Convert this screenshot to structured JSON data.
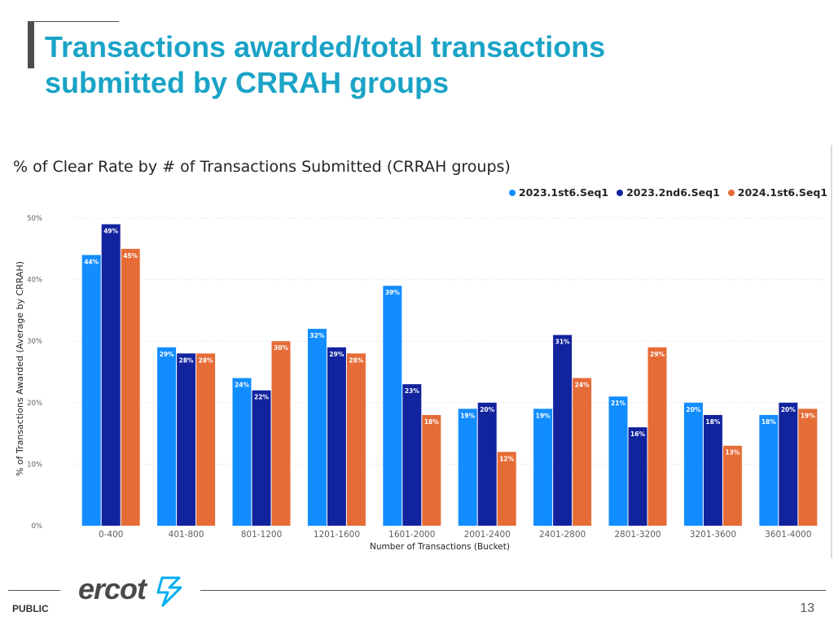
{
  "slide": {
    "title_line1": "Transactions awarded/total transactions",
    "title_line2": "submitted by CRRAH groups",
    "footer_label": "PUBLIC",
    "page_number": "13",
    "logo_text": "ercot"
  },
  "colors": {
    "title": "#1aa3c6",
    "series": [
      "#118dff",
      "#12239e",
      "#e66c37"
    ],
    "logo": "#4a4a4a",
    "logo_accent": "#00aeef"
  },
  "chart_data": {
    "type": "bar",
    "title": "% of Clear Rate by # of Transactions Submitted (CRRAH groups)",
    "xlabel": "Number of Transactions (Bucket)",
    "ylabel": "% of Transactions Awarded (Average by CRRAH)",
    "ylim": [
      0,
      50
    ],
    "yticks": [
      "0%",
      "10%",
      "20%",
      "30%",
      "40%",
      "50%"
    ],
    "grid": true,
    "legend_position": "top-right",
    "categories": [
      "0-400",
      "401-800",
      "801-1200",
      "1201-1600",
      "1601-2000",
      "2001-2400",
      "2401-2800",
      "2801-3200",
      "3201-3600",
      "3601-4000"
    ],
    "series": [
      {
        "name": "2023.1st6.Seq1",
        "values": [
          44,
          29,
          24,
          32,
          39,
          19,
          19,
          21,
          20,
          18
        ],
        "labels": [
          "44%",
          "29%",
          "24%",
          "32%",
          "39%",
          "19%",
          "19%",
          "21%",
          "20%",
          "18%"
        ]
      },
      {
        "name": "2023.2nd6.Seq1",
        "values": [
          49,
          28,
          22,
          29,
          23,
          20,
          31,
          16,
          18,
          20
        ],
        "labels": [
          "49%",
          "28%",
          "22%",
          "29%",
          "23%",
          "20%",
          "31%",
          "16%",
          "18%",
          "20%"
        ]
      },
      {
        "name": "2024.1st6.Seq1",
        "values": [
          45,
          28,
          30,
          28,
          18,
          12,
          24,
          29,
          13,
          19
        ],
        "labels": [
          "45%",
          "28%",
          "30%",
          "28%",
          "18%",
          "12%",
          "24%",
          "29%",
          "13%",
          "19%"
        ]
      }
    ]
  }
}
